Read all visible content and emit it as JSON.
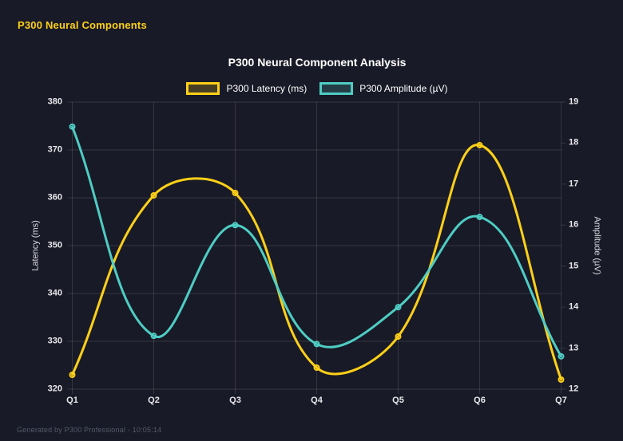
{
  "header": {
    "title": "P300 Neural Components",
    "color": "#fdd017"
  },
  "chart_data": {
    "type": "line",
    "title": "P300 Neural Component Analysis",
    "categories": [
      "Q1",
      "Q2",
      "Q3",
      "Q4",
      "Q5",
      "Q6",
      "Q7"
    ],
    "series": [
      {
        "name": "P300 Latency (ms)",
        "slug": "latency",
        "axis": "left",
        "color": "#fdd017",
        "values": [
          323,
          360.5,
          361,
          324.5,
          331,
          371,
          322
        ]
      },
      {
        "name": "P300 Amplitude (µV)",
        "slug": "amplitude",
        "axis": "right",
        "color": "#4ecdc4",
        "values": [
          18.4,
          13.3,
          16,
          13.1,
          14,
          16.2,
          12.8
        ]
      }
    ],
    "y_left": {
      "label": "Latency (ms)",
      "min": 320,
      "max": 380,
      "step": 10
    },
    "y_right": {
      "label": "Amplitude (µV)",
      "min": 12,
      "max": 19,
      "step": 1
    },
    "grid": true,
    "smooth": true,
    "legend_position": "top",
    "background": "#191a27",
    "grid_color": "rgba(255,255,255,0.12)",
    "tick_color": "#e8e8ec"
  },
  "footer": {
    "text": "Generated by P300 Professional - 10:05:14"
  }
}
